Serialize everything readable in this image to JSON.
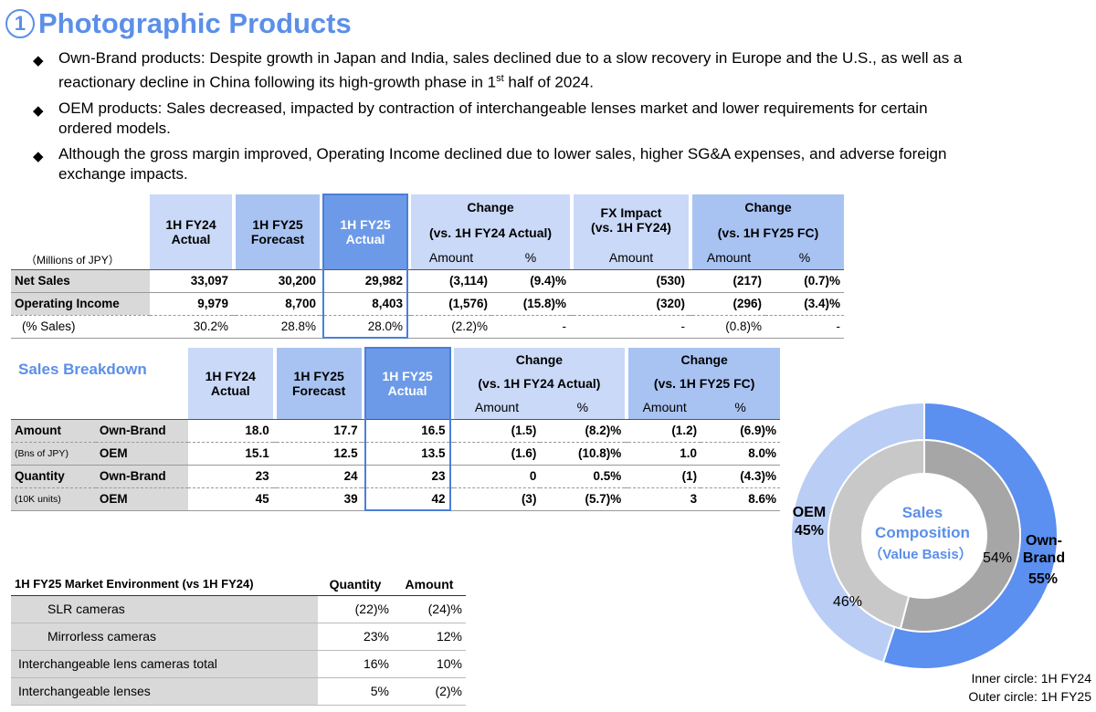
{
  "title": {
    "marker": "①",
    "text": "Photographic Products"
  },
  "bullets": [
    {
      "line1": "Own-Brand products: Despite growth in Japan and India, sales declined due to a slow recovery in Europe and the U.S., as well as a",
      "line2a": "reactionary decline in China following its high-growth phase in 1",
      "sup": "st",
      "line2b": " half of 2024."
    },
    {
      "line1": "OEM products: Sales decreased, impacted by contraction of interchangeable lenses market and lower requirements for certain",
      "line2": "ordered models."
    },
    {
      "line1": "Although the gross margin improved, Operating Income declined due to lower sales, higher SG&A expenses, and adverse foreign",
      "line2": "exchange impacts."
    }
  ],
  "summary": {
    "unit": "（Millions of JPY）",
    "headers": {
      "h1": "1H FY24",
      "h1b": "Actual",
      "h2": "1H FY25",
      "h2b": "Forecast",
      "h3": "1H FY25",
      "h3b": "Actual",
      "h4": "Change",
      "h4b": "(vs. 1H FY24 Actual)",
      "h5": "FX Impact",
      "h5b": "(vs. 1H FY24)",
      "h6": "Change",
      "h6b": "(vs. 1H FY25 FC)",
      "amount": "Amount",
      "pct": "%"
    },
    "rows": [
      {
        "label": "Net Sales",
        "c1": "33,097",
        "c2": "30,200",
        "c3": "29,982",
        "c4": "(3,114)",
        "c5": "(9.4)%",
        "c6": "(530)",
        "c7": "(217)",
        "c8": "(0.7)%"
      },
      {
        "label": "Operating Income",
        "c1": "9,979",
        "c2": "8,700",
        "c3": "8,403",
        "c4": "(1,576)",
        "c5": "(15.8)%",
        "c6": "(320)",
        "c7": "(296)",
        "c8": "(3.4)%"
      },
      {
        "label": "(% Sales)",
        "c1": "30.2%",
        "c2": "28.8%",
        "c3": "28.0%",
        "c4": "(2.2)%",
        "c5": "-",
        "c6": "-",
        "c7": "(0.8)%",
        "c8": "-"
      }
    ]
  },
  "breakdown": {
    "title": "Sales Breakdown",
    "headers": {
      "h1": "1H FY24",
      "h1b": "Actual",
      "h2": "1H FY25",
      "h2b": "Forecast",
      "h3": "1H FY25",
      "h3b": "Actual",
      "h4": "Change",
      "h4b": "(vs. 1H FY24 Actual)",
      "h5": "Change",
      "h5b": "(vs. 1H FY25 FC)",
      "amount": "Amount",
      "pct": "%"
    },
    "rows": [
      {
        "g": "Amount",
        "sub": "Own-Brand",
        "c1": "18.0",
        "c2": "17.7",
        "c3": "16.5",
        "c4": "(1.5)",
        "c5": "(8.2)%",
        "c6": "(1.2)",
        "c7": "(6.9)%"
      },
      {
        "g": "(Bns of JPY)",
        "sub": "OEM",
        "c1": "15.1",
        "c2": "12.5",
        "c3": "13.5",
        "c4": "(1.6)",
        "c5": "(10.8)%",
        "c6": "1.0",
        "c7": "8.0%"
      },
      {
        "g": "Quantity",
        "sub": "Own-Brand",
        "c1": "23",
        "c2": "24",
        "c3": "23",
        "c4": "0",
        "c5": "0.5%",
        "c6": "(1)",
        "c7": "(4.3)%"
      },
      {
        "g": "(10K units)",
        "sub": "OEM",
        "c1": "45",
        "c2": "39",
        "c3": "42",
        "c4": "(3)",
        "c5": "(5.7)%",
        "c6": "3",
        "c7": "8.6%"
      }
    ]
  },
  "market": {
    "title": "1H FY25 Market Environment (vs 1H FY24)",
    "col1": "Quantity",
    "col2": "Amount",
    "rows": [
      {
        "label": "SLR cameras",
        "q": "(22)%",
        "a": "(24)%",
        "indent": true
      },
      {
        "label": "Mirrorless cameras",
        "q": "23%",
        "a": "12%",
        "indent": true
      },
      {
        "label": "Interchangeable lens cameras total",
        "q": "16%",
        "a": "10%",
        "indent": false
      },
      {
        "label": "Interchangeable lenses",
        "q": "5%",
        "a": "(2)%",
        "indent": false
      }
    ]
  },
  "donut": {
    "center1": "Sales",
    "center2": "Composition",
    "center3": "（Value Basis）",
    "oem_label": "OEM",
    "oem_pct": "45%",
    "own_label1": "Own-",
    "own_label2": "Brand",
    "own_pct": "55%",
    "inner_own": "54%",
    "inner_oem": "46%",
    "legend1": "Inner circle: 1H FY24",
    "legend2": "Outer circle: 1H FY25",
    "colors": {
      "outer_own": "#5B8FF0",
      "outer_oem": "#B9CDF5",
      "inner_own": "#A6A6A6",
      "inner_oem": "#C8C8C8"
    }
  },
  "chart_data": {
    "type": "pie",
    "title": "Sales Composition (Value Basis)",
    "series": [
      {
        "name": "Inner circle: 1H FY24",
        "labels": [
          "Own-Brand",
          "OEM"
        ],
        "values": [
          54,
          46
        ]
      },
      {
        "name": "Outer circle: 1H FY25",
        "labels": [
          "Own-Brand",
          "OEM"
        ],
        "values": [
          55,
          45
        ]
      }
    ]
  }
}
